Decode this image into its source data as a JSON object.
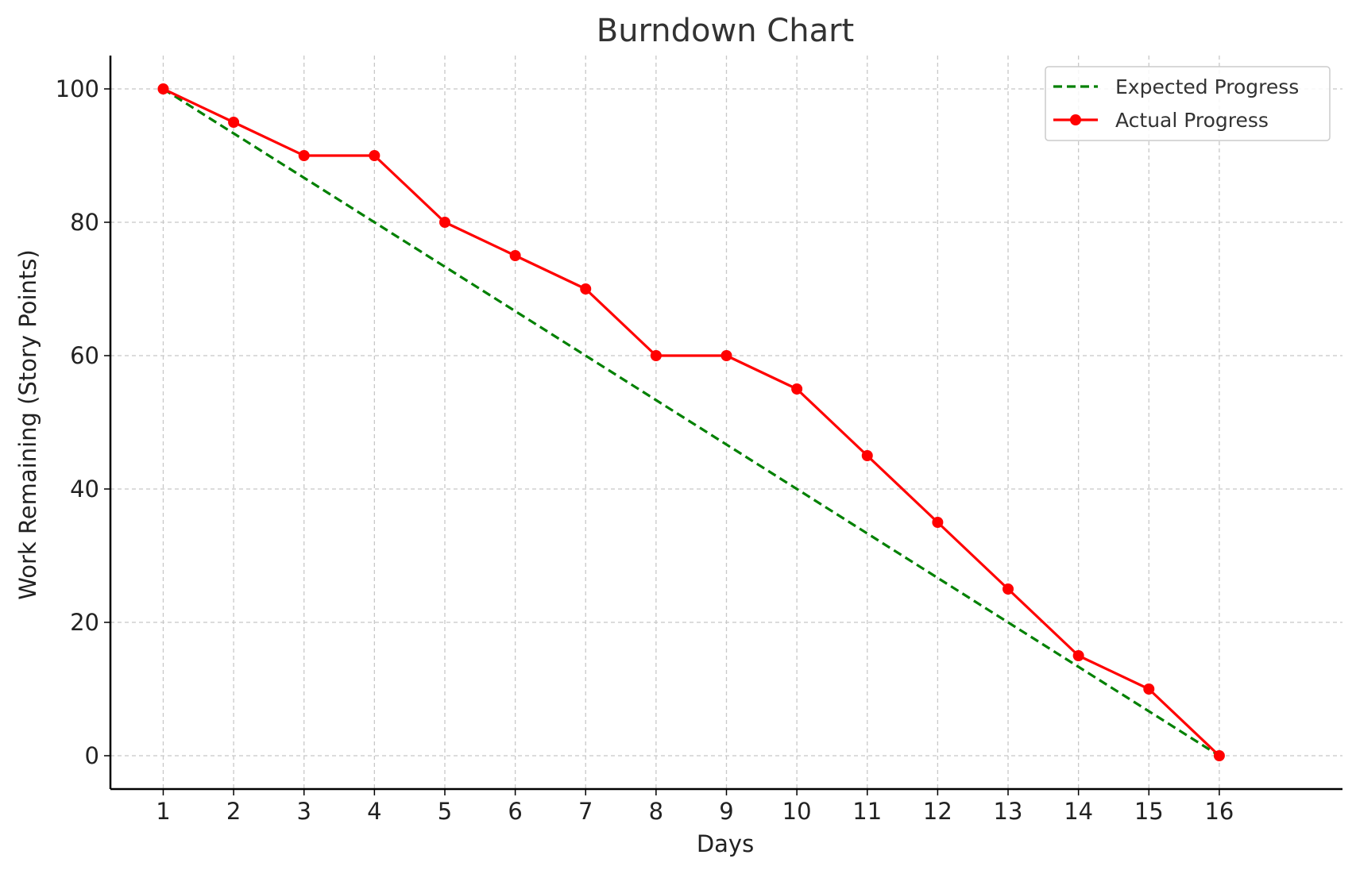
{
  "chart_data": {
    "type": "line",
    "title": "Burndown Chart",
    "xlabel": "Days",
    "ylabel": "Work Remaining (Story Points)",
    "x": [
      1,
      2,
      3,
      4,
      5,
      6,
      7,
      8,
      9,
      10,
      11,
      12,
      13,
      14,
      15,
      16
    ],
    "x_ticks": [
      "1",
      "2",
      "3",
      "4",
      "5",
      "6",
      "7",
      "8",
      "9",
      "10",
      "11",
      "12",
      "13",
      "14",
      "15",
      "16"
    ],
    "y_ticks": [
      0,
      20,
      40,
      60,
      80,
      100
    ],
    "xlim": [
      0.25,
      17.75
    ],
    "ylim": [
      -5,
      105
    ],
    "grid": true,
    "grid_style": "dashed",
    "legend_position": "top-right",
    "series": [
      {
        "name": "Expected Progress",
        "color": "#008000",
        "line_style": "dashed",
        "marker": "none",
        "values": [
          100,
          93.33,
          86.67,
          80,
          73.33,
          66.67,
          60,
          53.33,
          46.67,
          40,
          33.33,
          26.67,
          20,
          13.33,
          6.67,
          0
        ]
      },
      {
        "name": "Actual Progress",
        "color": "#ff0000",
        "line_style": "solid",
        "marker": "circle",
        "values": [
          100,
          95,
          90,
          90,
          80,
          75,
          70,
          60,
          60,
          55,
          45,
          35,
          25,
          15,
          10,
          0
        ]
      }
    ]
  }
}
